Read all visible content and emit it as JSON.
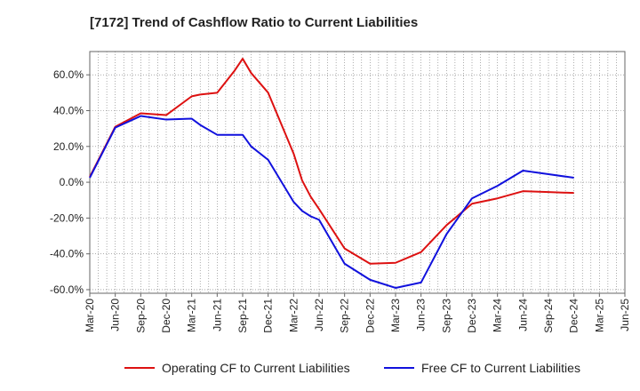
{
  "chart_data": {
    "type": "line",
    "title": "[7172]  Trend of Cashflow Ratio to Current Liabilities",
    "xlabel": "",
    "ylabel": "",
    "ylim": [
      -62,
      73
    ],
    "yticks": [
      "60.0%",
      "40.0%",
      "20.0%",
      "0.0%",
      "-20.0%",
      "-40.0%",
      "-60.0%"
    ],
    "ytick_values": [
      60,
      40,
      20,
      0,
      -20,
      -40,
      -60
    ],
    "xticks": [
      "Mar-20",
      "Jun-20",
      "Sep-20",
      "Dec-20",
      "Mar-21",
      "Jun-21",
      "Sep-21",
      "Dec-21",
      "Mar-22",
      "Jun-22",
      "Sep-22",
      "Dec-22",
      "Mar-23",
      "Jun-23",
      "Sep-23",
      "Dec-23",
      "Mar-24",
      "Jun-24",
      "Sep-24",
      "Dec-24",
      "Mar-25",
      "Jun-25"
    ],
    "x": [
      "2020-03",
      "2020-06",
      "2020-09",
      "2020-12",
      "2021-03",
      "2021-04",
      "2021-06",
      "2021-07",
      "2021-08",
      "2021-09",
      "2021-10",
      "2021-12",
      "2022-03",
      "2022-04",
      "2022-05",
      "2022-06",
      "2022-09",
      "2022-12",
      "2023-03",
      "2023-06",
      "2023-09",
      "2023-12",
      "2024-03",
      "2024-06",
      "2024-09",
      "2024-12"
    ],
    "grid": true,
    "legend_position": "bottom",
    "series": [
      {
        "name": "Operating CF to Current Liabilities",
        "color": "#dd1111",
        "values": [
          3,
          31,
          38.5,
          37.5,
          48,
          49,
          50,
          56,
          62,
          69,
          61,
          50,
          16,
          1,
          -8,
          -15,
          -37,
          -45.5,
          -45,
          -39,
          -24,
          -12,
          -9,
          -5,
          -5.5,
          -6
        ]
      },
      {
        "name": "Free CF to Current Liabilities",
        "color": "#1111dd",
        "values": [
          2.5,
          30.5,
          37,
          35,
          35.5,
          32,
          26.5,
          26.5,
          26.5,
          26.5,
          20,
          12.5,
          -11,
          -16,
          -19,
          -21,
          -45.5,
          -54.5,
          -59,
          -56,
          -29,
          -9,
          -2,
          6.5,
          4.5,
          2.5
        ]
      }
    ]
  }
}
